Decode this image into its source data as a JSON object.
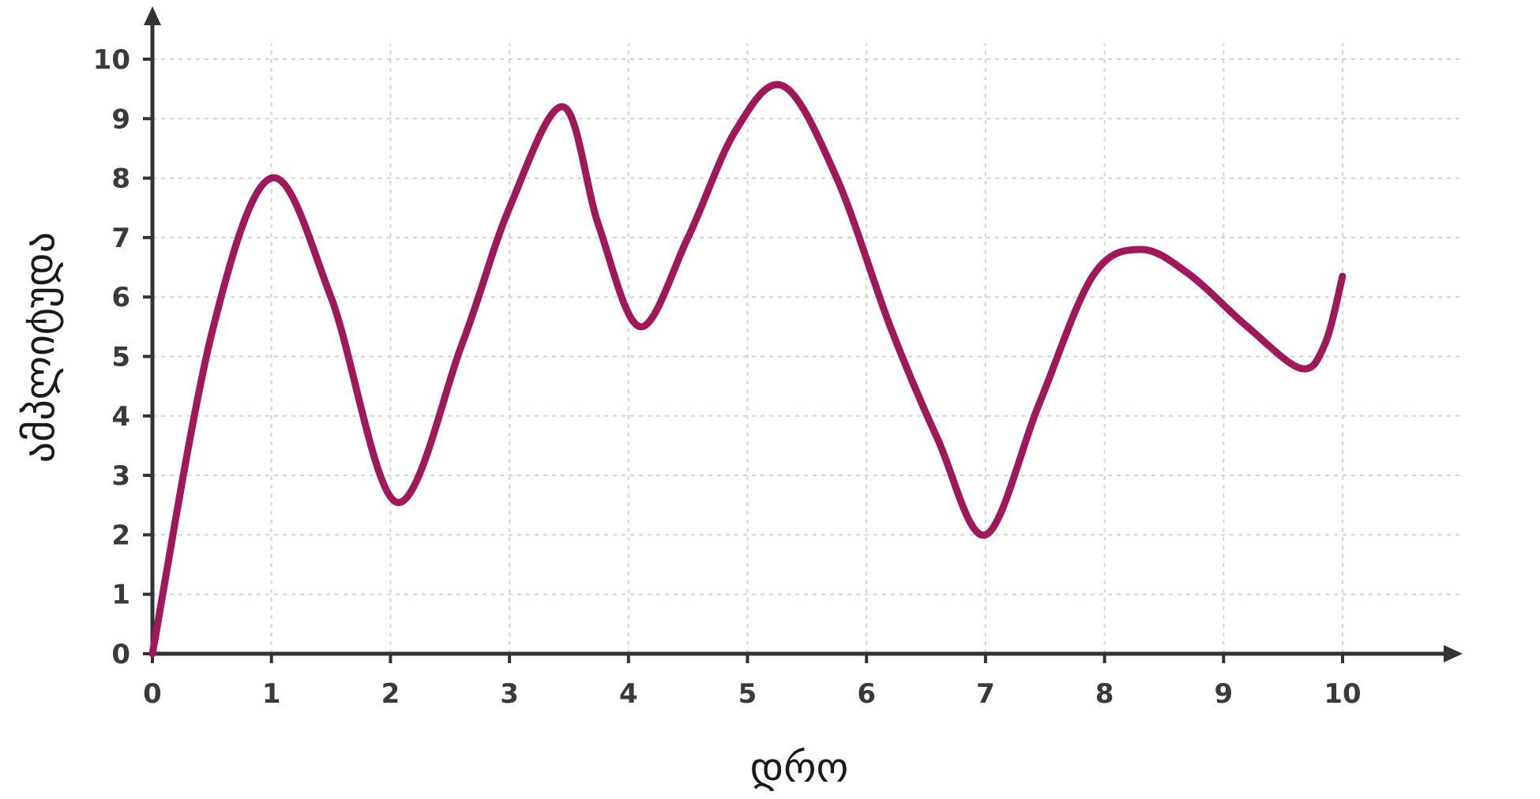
{
  "chart_data": {
    "type": "line",
    "title": "",
    "xlabel": "დრო",
    "ylabel": "ამპლიტუდა",
    "xlim": [
      0,
      10
    ],
    "ylim": [
      0,
      10
    ],
    "x_ticks": [
      0,
      1,
      2,
      3,
      4,
      5,
      6,
      7,
      8,
      9,
      10
    ],
    "y_ticks": [
      0,
      1,
      2,
      3,
      4,
      5,
      6,
      7,
      8,
      9,
      10
    ],
    "x_tick_labels": [
      "0",
      "1",
      "2",
      "3",
      "4",
      "5",
      "6",
      "7",
      "8",
      "9",
      "10"
    ],
    "y_tick_labels": [
      "0",
      "1",
      "2",
      "3",
      "4",
      "5",
      "6",
      "7",
      "8",
      "9",
      "10"
    ],
    "grid": true,
    "legend": "none",
    "series": [
      {
        "color": "#a0185a",
        "points": [
          [
            0,
            0
          ],
          [
            0.5,
            5.4
          ],
          [
            1.0,
            8.0
          ],
          [
            1.5,
            6.0
          ],
          [
            2.05,
            2.55
          ],
          [
            2.6,
            5.2
          ],
          [
            3.0,
            7.5
          ],
          [
            3.45,
            9.2
          ],
          [
            3.75,
            7.2
          ],
          [
            4.1,
            5.5
          ],
          [
            4.5,
            7.0
          ],
          [
            4.9,
            8.8
          ],
          [
            5.3,
            9.55
          ],
          [
            5.75,
            8.0
          ],
          [
            6.2,
            5.5
          ],
          [
            6.6,
            3.6
          ],
          [
            7.0,
            2.0
          ],
          [
            7.45,
            4.2
          ],
          [
            7.9,
            6.35
          ],
          [
            8.3,
            6.8
          ],
          [
            8.7,
            6.4
          ],
          [
            9.2,
            5.5
          ],
          [
            9.65,
            4.8
          ],
          [
            9.85,
            5.2
          ],
          [
            10.0,
            6.35
          ]
        ]
      }
    ]
  }
}
